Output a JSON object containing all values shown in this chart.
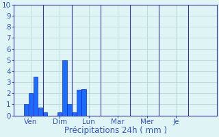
{
  "bar_values": [
    0.0,
    0.0,
    1.0,
    2.0,
    3.5,
    0.7,
    0.3,
    0.0,
    0.0,
    0.3,
    5.0,
    1.0,
    0.3,
    2.3,
    2.4,
    0.0,
    0.0,
    0.0,
    0.0,
    0.0,
    0.0,
    0.0,
    0.0,
    0.0,
    0.0,
    0.0,
    0.0,
    0.0,
    0.0,
    0.0,
    0.0,
    0.0,
    0.0,
    0.0,
    0.0,
    0.0,
    0.0,
    0.0,
    0.0,
    0.0,
    0.0,
    0.0
  ],
  "n_bars": 42,
  "day_labels": [
    "Ven",
    "Dim",
    "Lun",
    "Mar",
    "Mer",
    "Je"
  ],
  "day_tick_positions": [
    3,
    9,
    15,
    21,
    27,
    33
  ],
  "day_separator_positions": [
    6,
    12,
    18,
    24,
    30,
    36
  ],
  "ylim": [
    0,
    10
  ],
  "yticks": [
    0,
    1,
    2,
    3,
    4,
    5,
    6,
    7,
    8,
    9,
    10
  ],
  "xlabel": "Précipitations 24h ( mm )",
  "bar_color": "#1a6eff",
  "bar_edge_color": "#0000cc",
  "bg_color": "#dff4f4",
  "grid_color": "#aad4d4",
  "axis_color": "#3333aa",
  "label_color": "#3355cc",
  "tick_color": "#3355cc",
  "xlabel_fontsize": 8.5,
  "ytick_fontsize": 7.5,
  "xtick_fontsize": 7.5
}
